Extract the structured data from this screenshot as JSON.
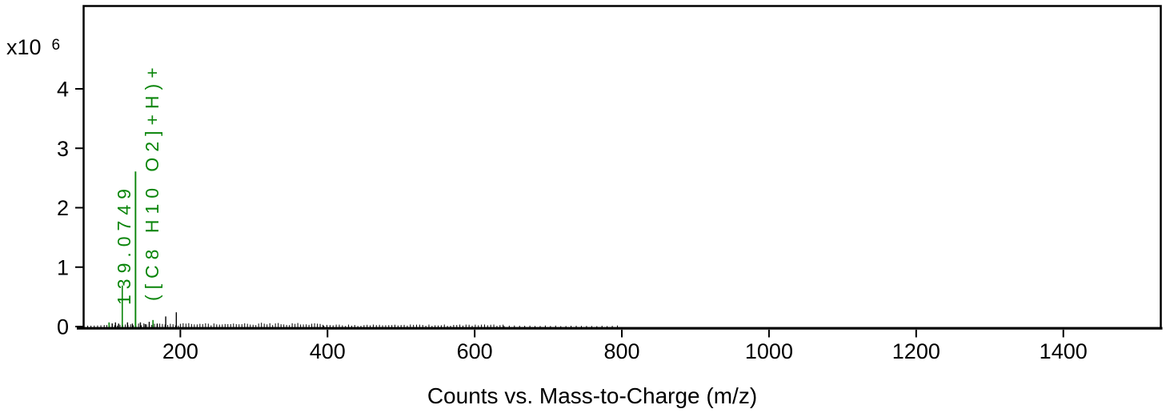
{
  "chart_data": {
    "type": "mass-spectrum-stick",
    "title": "",
    "xlabel": "Counts vs. Mass-to-Charge (m/z)",
    "y_scale_label": "x10",
    "y_scale_exponent": "6",
    "x_ticks": [
      200,
      400,
      600,
      800,
      1000,
      1200,
      1400
    ],
    "y_ticks": [
      0,
      1,
      2,
      3,
      4
    ],
    "xlim": [
      68,
      1533
    ],
    "ylim": [
      0,
      5.4
    ],
    "grid": false,
    "legend": "none",
    "y_units": "counts x10^6",
    "annotated_peak": {
      "mz": 139.0749,
      "intensity": 2.61,
      "mass_label": "139.0749",
      "formula_label": "([C8 H10 O2]+H)+"
    },
    "matched_peaks": [
      {
        "mz": 103.1,
        "intensity": 0.07
      },
      {
        "mz": 121.06,
        "intensity": 0.69
      },
      {
        "mz": 139.0749,
        "intensity": 2.61
      },
      {
        "mz": 162.8,
        "intensity": 0.11
      }
    ],
    "other_peaks": [
      {
        "mz": 107.4,
        "intensity": 0.05
      },
      {
        "mz": 111.8,
        "intensity": 0.07
      },
      {
        "mz": 116.1,
        "intensity": 0.05
      },
      {
        "mz": 128.2,
        "intensity": 0.07
      },
      {
        "mz": 134.8,
        "intensity": 0.05
      },
      {
        "mz": 145.7,
        "intensity": 0.07
      },
      {
        "mz": 152.3,
        "intensity": 0.04
      },
      {
        "mz": 157.7,
        "intensity": 0.08
      },
      {
        "mz": 168.6,
        "intensity": 0.05
      },
      {
        "mz": 180.1,
        "intensity": 0.17
      },
      {
        "mz": 194.5,
        "intensity": 0.24
      }
    ],
    "noise_segments": [
      {
        "from": 74,
        "to": 100,
        "step": 4.5,
        "min": 0.012,
        "max": 0.03
      },
      {
        "from": 100,
        "to": 200,
        "step": 3.6,
        "min": 0.015,
        "max": 0.055
      },
      {
        "from": 200,
        "to": 395,
        "step": 3.8,
        "min": 0.02,
        "max": 0.065
      },
      {
        "from": 395,
        "to": 640,
        "step": 4.2,
        "min": 0.01,
        "max": 0.035
      },
      {
        "from": 640,
        "to": 800,
        "step": 7.0,
        "min": 0.007,
        "max": 0.018
      }
    ],
    "colors": {
      "matched_peak": "#0a850a",
      "unmatched_peak": "#000000",
      "axis": "#000000",
      "background": "#ffffff"
    }
  }
}
